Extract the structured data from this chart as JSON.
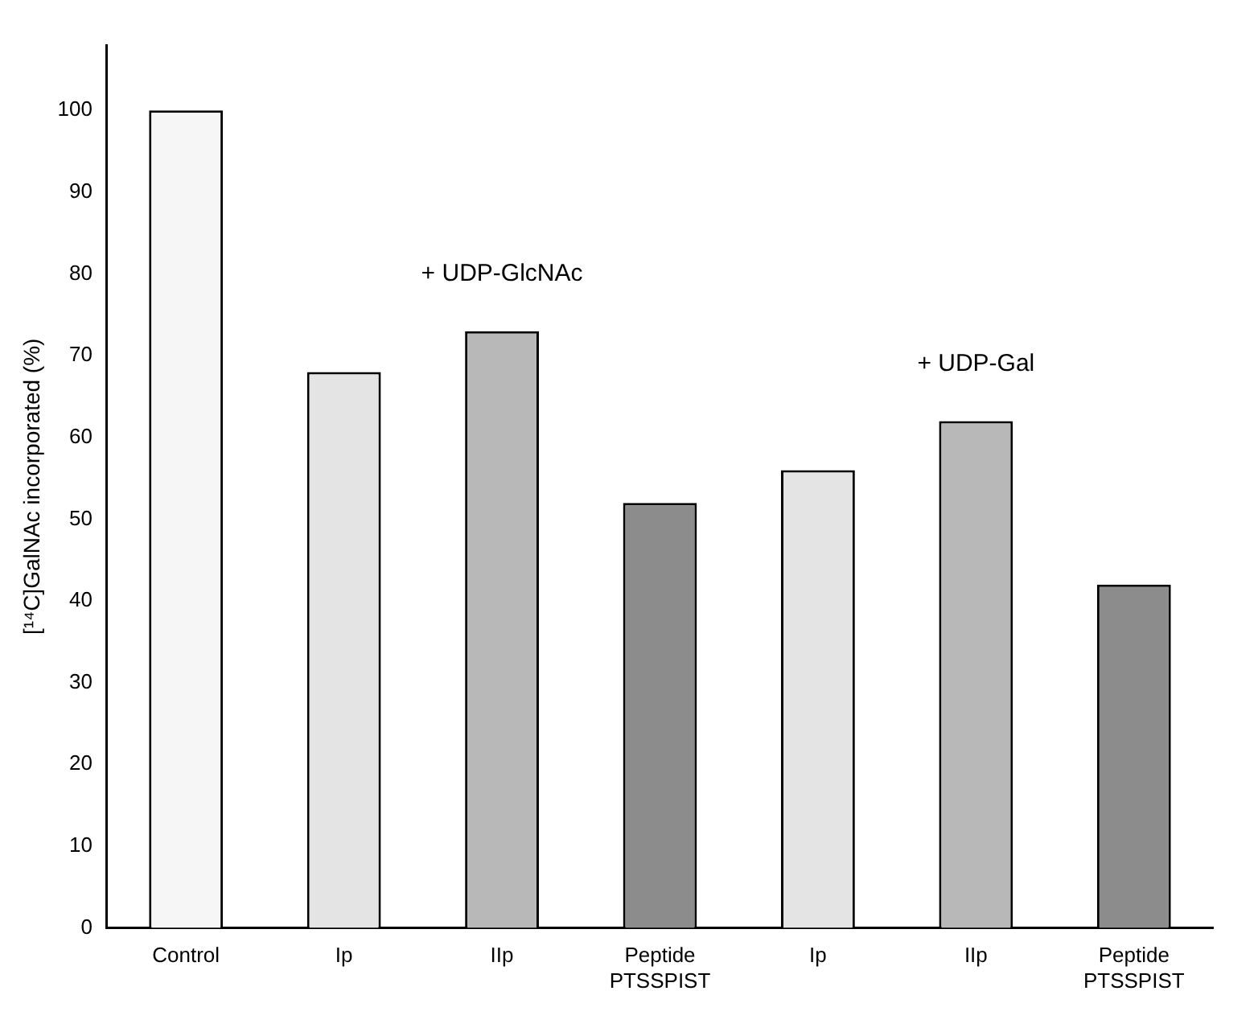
{
  "chart_data": {
    "type": "bar",
    "ylabel": "[¹⁴C]GalNAc incorporated (%)",
    "categories": [
      "Control",
      "Ip",
      "IIp",
      "Peptide PTSSPIST",
      "Ip",
      "IIp",
      "Peptide PTSSPIST"
    ],
    "values": [
      100,
      68,
      73,
      52,
      56,
      62,
      42
    ],
    "colors": [
      "#f6f6f6",
      "#e4e4e4",
      "#b8b8b8",
      "#8c8c8c",
      "#e4e4e4",
      "#b8b8b8",
      "#8c8c8c"
    ],
    "ylim": [
      0,
      108
    ],
    "yticks": [
      0,
      10,
      20,
      30,
      40,
      50,
      60,
      70,
      80,
      90,
      100
    ],
    "grid": false,
    "legend": false,
    "annotations": [
      "+ UDP-GlcNAc",
      "+ UDP-Gal"
    ]
  }
}
